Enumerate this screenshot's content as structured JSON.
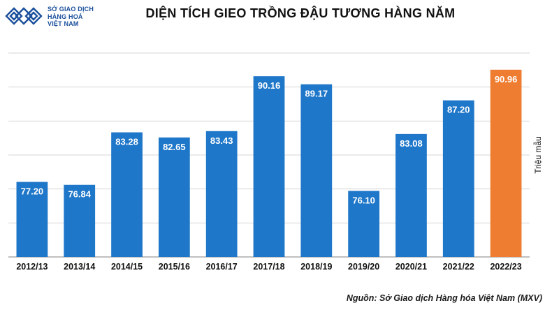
{
  "logo": {
    "line1": "SỞ GIAO DỊCH",
    "line2": "HÀNG HOÁ",
    "line3": "VIỆT NAM",
    "color": "#1a4f9c"
  },
  "title": "DIỆN TÍCH GIEO TRỒNG ĐẬU TƯƠNG HÀNG NĂM",
  "source": "Nguồn: Sở Giao dịch Hàng hóa Việt Nam (MXV)",
  "chart_data": {
    "type": "bar",
    "title": "DIỆN TÍCH GIEO TRỒNG ĐẬU TƯƠNG HÀNG NĂM",
    "ylabel": "Triệu mẫu",
    "xlabel": "",
    "categories": [
      "2012/13",
      "2013/14",
      "2014/15",
      "2015/16",
      "2016/17",
      "2017/18",
      "2018/19",
      "2019/20",
      "2020/21",
      "2021/22",
      "2022/23"
    ],
    "values": [
      77.2,
      76.84,
      83.28,
      82.65,
      83.43,
      90.16,
      89.17,
      76.1,
      83.08,
      87.2,
      90.96
    ],
    "data_labels": [
      "77.20",
      "76.84",
      "83.28",
      "82.65",
      "83.43",
      "90.16",
      "89.17",
      "76.10",
      "83.08",
      "87.20",
      "90.96"
    ],
    "ylim": [
      68,
      93
    ],
    "grid": true,
    "bar_color": "#1f77c9",
    "highlight_color": "#ef7d31",
    "highlight_index": 10
  }
}
